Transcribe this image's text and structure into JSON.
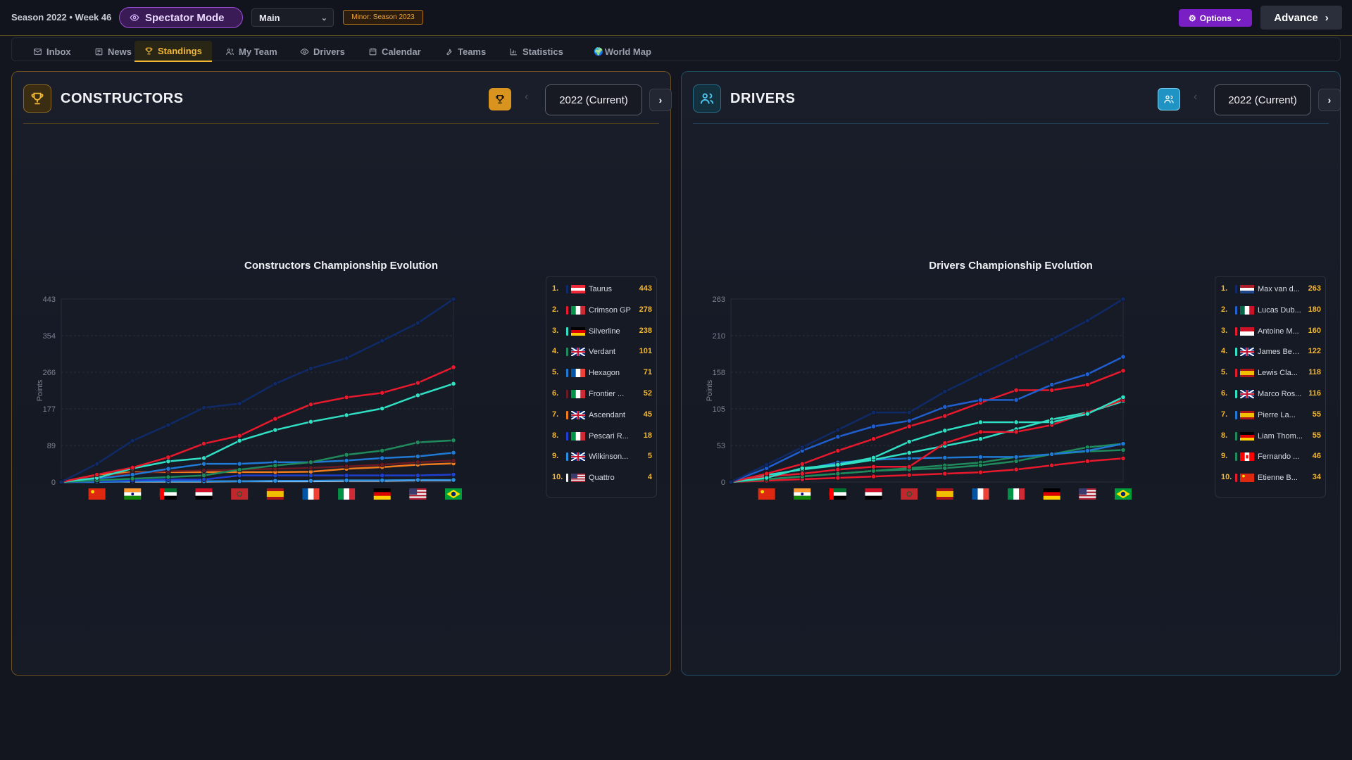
{
  "topbar": {
    "season": "Season 2022 • Week 46",
    "spectator": "Spectator Mode",
    "select_value": "Main",
    "minor_badge": "Minor: Season 2023",
    "options": "Options",
    "advance": "Advance"
  },
  "nav": [
    {
      "label": "Inbox",
      "icon": "mail-icon"
    },
    {
      "label": "News",
      "icon": "newspaper-icon"
    },
    {
      "label": "Standings",
      "icon": "trophy-icon",
      "active": true
    },
    {
      "label": "My Team",
      "icon": "users-icon"
    },
    {
      "label": "Drivers",
      "icon": "eye-icon"
    },
    {
      "label": "Calendar",
      "icon": "calendar-icon"
    },
    {
      "label": "Teams",
      "icon": "wrench-icon"
    },
    {
      "label": "Statistics",
      "icon": "bar-chart-icon"
    },
    {
      "label": "World Map",
      "icon": "globe-icon"
    }
  ],
  "constructors": {
    "title": "CONSTRUCTORS",
    "year": "2022 (Current)",
    "legend": [
      {
        "rank": "1.",
        "name": "Taurus",
        "points": "443",
        "color": "#0f2a66",
        "flag": "at"
      },
      {
        "rank": "2.",
        "name": "Crimson GP",
        "points": "278",
        "color": "#e8192c",
        "flag": "it"
      },
      {
        "rank": "3.",
        "name": "Silverline",
        "points": "238",
        "color": "#2fe0c4",
        "flag": "de"
      },
      {
        "rank": "4.",
        "name": "Verdant",
        "points": "101",
        "color": "#1f8a5c",
        "flag": "gb"
      },
      {
        "rank": "5.",
        "name": "Hexagon",
        "points": "71",
        "color": "#1f7ad6",
        "flag": "fr"
      },
      {
        "rank": "6.",
        "name": "Frontier ...",
        "points": "52",
        "color": "#6a1a22",
        "flag": "it"
      },
      {
        "rank": "7.",
        "name": "Ascendant",
        "points": "45",
        "color": "#f07b1d",
        "flag": "gb"
      },
      {
        "rank": "8.",
        "name": "Pescari R...",
        "points": "18",
        "color": "#1e3fd0",
        "flag": "it"
      },
      {
        "rank": "9.",
        "name": "Wilkinson...",
        "points": "5",
        "color": "#2a8fe0",
        "flag": "gb"
      },
      {
        "rank": "10.",
        "name": "Quattro",
        "points": "4",
        "color": "#f2f2f2",
        "flag": "us"
      }
    ]
  },
  "drivers": {
    "title": "DRIVERS",
    "year": "2022 (Current)",
    "legend": [
      {
        "rank": "1.",
        "name": "Max van d...",
        "points": "263",
        "color": "#0f2a66",
        "flag": "nl"
      },
      {
        "rank": "2.",
        "name": "Lucas Dub...",
        "points": "180",
        "color": "#1f5fd0",
        "flag": "mx"
      },
      {
        "rank": "3.",
        "name": "Antoine M...",
        "points": "160",
        "color": "#e8192c",
        "flag": "mc"
      },
      {
        "rank": "4.",
        "name": "James Ben...",
        "points": "122",
        "color": "#2fe0c4",
        "flag": "gb"
      },
      {
        "rank": "5.",
        "name": "Lewis Cla...",
        "points": "118",
        "color": "#e8192c",
        "flag": "es"
      },
      {
        "rank": "6.",
        "name": "Marco Ros...",
        "points": "116",
        "color": "#2fe0c4",
        "flag": "gb"
      },
      {
        "rank": "7.",
        "name": "Pierre La...",
        "points": "55",
        "color": "#1f7ad6",
        "flag": "es"
      },
      {
        "rank": "8.",
        "name": "Liam Thom...",
        "points": "55",
        "color": "#1f8a5c",
        "flag": "de"
      },
      {
        "rank": "9.",
        "name": "Fernando ...",
        "points": "46",
        "color": "#1f8a5c",
        "flag": "ca"
      },
      {
        "rank": "10.",
        "name": "Etienne B...",
        "points": "34",
        "color": "#e8192c",
        "flag": "cn"
      }
    ]
  },
  "chart_data": [
    {
      "type": "line",
      "title": "Constructors Championship Evolution",
      "ylabel": "Points",
      "ylim": [
        0,
        443
      ],
      "yticks": [
        "0",
        "89",
        "177",
        "266",
        "354",
        "443"
      ],
      "x_flags": [
        "",
        "cn",
        "in",
        "ae",
        "eg",
        "ma",
        "es",
        "fr",
        "it",
        "de",
        "us",
        "br"
      ],
      "series": [
        {
          "name": "Taurus",
          "color": "#0f2a66",
          "values": [
            0,
            44,
            100,
            138,
            180,
            190,
            238,
            275,
            300,
            342,
            385,
            443
          ]
        },
        {
          "name": "Crimson GP",
          "color": "#e8192c",
          "values": [
            0,
            18,
            35,
            60,
            93,
            112,
            153,
            188,
            205,
            216,
            240,
            278
          ]
        },
        {
          "name": "Silverline",
          "color": "#2fe0c4",
          "values": [
            0,
            10,
            33,
            50,
            58,
            100,
            126,
            146,
            162,
            178,
            210,
            238
          ]
        },
        {
          "name": "Verdant",
          "color": "#1f8a5c",
          "values": [
            0,
            4,
            8,
            12,
            16,
            30,
            40,
            48,
            66,
            76,
            96,
            101
          ]
        },
        {
          "name": "Hexagon",
          "color": "#1f7ad6",
          "values": [
            0,
            8,
            18,
            32,
            44,
            44,
            48,
            48,
            52,
            58,
            62,
            71
          ]
        },
        {
          "name": "Frontier ...",
          "color": "#6a1a22",
          "values": [
            0,
            12,
            22,
            26,
            28,
            30,
            32,
            34,
            38,
            42,
            48,
            52
          ]
        },
        {
          "name": "Ascendant",
          "color": "#f07b1d",
          "values": [
            0,
            18,
            24,
            24,
            24,
            24,
            24,
            25,
            32,
            36,
            42,
            45
          ]
        },
        {
          "name": "Pescari R...",
          "color": "#1e3fd0",
          "values": [
            0,
            2,
            4,
            6,
            6,
            16,
            16,
            16,
            16,
            16,
            16,
            18
          ]
        },
        {
          "name": "Wilkinson...",
          "color": "#2a8fe0",
          "values": [
            0,
            0,
            2,
            2,
            2,
            2,
            3,
            3,
            4,
            4,
            5,
            5
          ]
        },
        {
          "name": "Quattro",
          "color": "#f2f2f2",
          "values": [
            0,
            1,
            1,
            1,
            1,
            2,
            2,
            2,
            3,
            3,
            4,
            4
          ]
        }
      ]
    },
    {
      "type": "line",
      "title": "Drivers Championship Evolution",
      "ylabel": "Points",
      "ylim": [
        0,
        263
      ],
      "yticks": [
        "0",
        "53",
        "105",
        "158",
        "210",
        "263"
      ],
      "x_flags": [
        "",
        "cn",
        "in",
        "ae",
        "eg",
        "ma",
        "es",
        "fr",
        "it",
        "de",
        "us",
        "br"
      ],
      "series": [
        {
          "name": "Max van d...",
          "color": "#0f2a66",
          "values": [
            0,
            25,
            50,
            75,
            100,
            100,
            130,
            155,
            180,
            205,
            232,
            263
          ]
        },
        {
          "name": "Lucas Dub...",
          "color": "#1f5fd0",
          "values": [
            0,
            20,
            45,
            65,
            80,
            88,
            108,
            118,
            118,
            140,
            155,
            180
          ]
        },
        {
          "name": "Antoine M...",
          "color": "#e8192c",
          "values": [
            0,
            12,
            26,
            45,
            62,
            80,
            95,
            114,
            132,
            132,
            140,
            160
          ]
        },
        {
          "name": "James Ben...",
          "color": "#2fe0c4",
          "values": [
            0,
            6,
            20,
            25,
            35,
            58,
            74,
            86,
            86,
            86,
            98,
            122
          ]
        },
        {
          "name": "Lewis Cla...",
          "color": "#e8192c",
          "values": [
            0,
            8,
            12,
            18,
            22,
            22,
            56,
            72,
            72,
            82,
            100,
            118
          ]
        },
        {
          "name": "Marco Ros...",
          "color": "#2fe0c4",
          "values": [
            0,
            10,
            18,
            24,
            32,
            42,
            52,
            62,
            76,
            90,
            100,
            116
          ]
        },
        {
          "name": "Pierre La...",
          "color": "#1f7ad6",
          "values": [
            0,
            10,
            18,
            28,
            32,
            34,
            35,
            36,
            36,
            40,
            45,
            55
          ]
        },
        {
          "name": "Liam Thom...",
          "color": "#1f8a5c",
          "values": [
            0,
            4,
            8,
            12,
            16,
            18,
            20,
            24,
            30,
            40,
            50,
            55
          ]
        },
        {
          "name": "Fernando ...",
          "color": "#1f8a5c",
          "values": [
            0,
            4,
            8,
            12,
            16,
            20,
            24,
            28,
            36,
            40,
            44,
            46
          ]
        },
        {
          "name": "Etienne B...",
          "color": "#e8192c",
          "values": [
            0,
            2,
            4,
            6,
            8,
            10,
            12,
            14,
            18,
            24,
            30,
            34
          ]
        }
      ]
    }
  ]
}
